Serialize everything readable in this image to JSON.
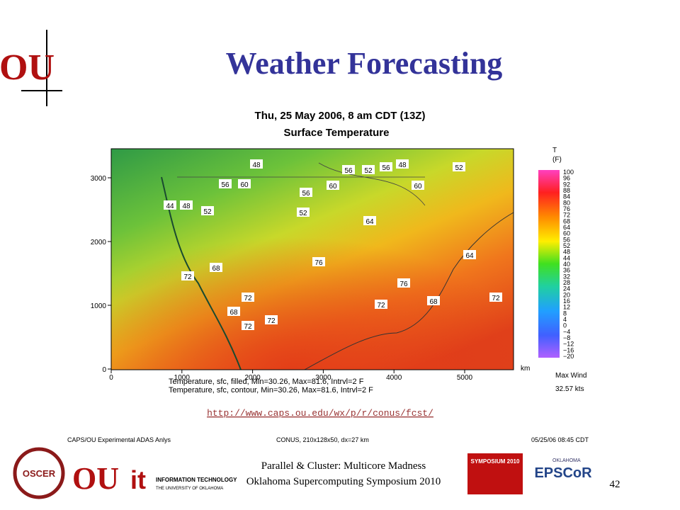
{
  "header": {
    "title": "Weather Forecasting",
    "logo": "OU"
  },
  "figure": {
    "title_lines": [
      "Thu, 25 May 2006, 8 am CDT (13Z)",
      "Surface Temperature"
    ],
    "y_ticks": [
      "0",
      "1000",
      "2000",
      "3000"
    ],
    "x_ticks": [
      "0",
      "1000",
      "2000",
      "3000",
      "4000",
      "5000"
    ],
    "x_unit": "km",
    "legend": {
      "title_lines": [
        "T",
        "(F)"
      ],
      "labels": [
        "100",
        "96",
        "92",
        "88",
        "84",
        "80",
        "76",
        "72",
        "68",
        "64",
        "60",
        "56",
        "52",
        "48",
        "44",
        "40",
        "36",
        "32",
        "28",
        "24",
        "20",
        "16",
        "12",
        "8",
        "4",
        "0",
        "−4",
        "−8",
        "−12",
        "−16",
        "−20"
      ]
    },
    "wind": {
      "label": "Max Wind",
      "value": "32.57 kts"
    },
    "notes": [
      "Temperature, sfc, filled, Min=30.26, Max=81.6, Intrvl=2 F",
      "Temperature, sfc, contour, Min=30.26, Max=81.6, Intrvl=2 F"
    ],
    "map_labels": [
      "48",
      "52",
      "56",
      "48",
      "52",
      "56",
      "60",
      "44",
      "48",
      "52",
      "56",
      "60",
      "56",
      "52",
      "64",
      "60",
      "68",
      "72",
      "72",
      "76",
      "76",
      "72",
      "68",
      "64",
      "68",
      "72",
      "72",
      "72"
    ],
    "caption": {
      "left": "CAPS/OU Experimental ADAS Anlys",
      "center": "CONUS, 210x128x50, dx=27 km",
      "right": "05/25/06 08:45 CDT"
    }
  },
  "link": "http://www.caps.ou.edu/wx/p/r/conus/fcst/",
  "footer": {
    "lines": [
      "Parallel & Cluster: Multicore Madness",
      "Oklahoma Supercomputing Symposium 2010"
    ],
    "page": "42",
    "logos": {
      "oscer": "OSCER",
      "ou": "OU",
      "it": "it",
      "it_name": "INFORMATION TECHNOLOGY",
      "it_sub": "THE UNIVERSITY OF OKLAHOMA",
      "symposium": "SYMPOSIUM 2010",
      "epscor": "EPSCoR",
      "epscor_state": "OKLAHOMA"
    }
  }
}
